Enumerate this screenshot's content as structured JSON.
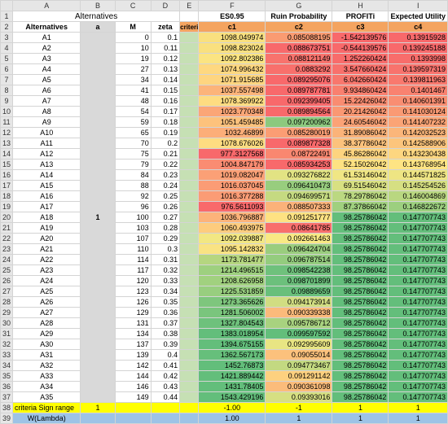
{
  "columns": [
    "A",
    "B",
    "C",
    "D",
    "E",
    "F",
    "G",
    "H",
    "I"
  ],
  "row1": {
    "alternatives_title": "Alternatives",
    "f": "ES0.95",
    "g": "Ruin Probability",
    "h": "PROFITi",
    "i": "Expected Utility"
  },
  "row2": {
    "a": "Alternatives",
    "b": "a",
    "c": "M",
    "d": "zeta",
    "e": "criteri",
    "f": "c1",
    "g": "c2",
    "h": "c3",
    "i": "c4"
  },
  "b_value": "1",
  "rows": [
    {
      "alt": "A1",
      "m": "0",
      "zeta": "0.1",
      "f": "1098.049974",
      "g": "0.085088195",
      "h": "-1.542139576",
      "i": "0.13915928",
      "fc": "#f9e07f",
      "gc": "#fa9b72",
      "hc": "#f8696b",
      "ic": "#f8696b"
    },
    {
      "alt": "A2",
      "m": "10",
      "zeta": "0.11",
      "f": "1098.823024",
      "g": "0.088673751",
      "h": "-0.544139576",
      "i": "0.139245188",
      "fc": "#f9e07f",
      "gc": "#f8696b",
      "hc": "#f8696b",
      "ic": "#f8696b"
    },
    {
      "alt": "A3",
      "m": "19",
      "zeta": "0.12",
      "f": "1092.802386",
      "g": "0.088121149",
      "h": "1.252260424",
      "i": "0.1393998",
      "fc": "#fbe482",
      "gc": "#f8736d",
      "hc": "#f86c6b",
      "ic": "#f86d6b"
    },
    {
      "alt": "A4",
      "m": "27",
      "zeta": "0.13",
      "f": "1074.996432",
      "g": "0.0883292",
      "h": "3.547660424",
      "i": "0.139597319",
      "fc": "#fed880",
      "gc": "#f8706c",
      "hc": "#f8716c",
      "ic": "#f8736d"
    },
    {
      "alt": "A5",
      "m": "34",
      "zeta": "0.14",
      "f": "1071.915685",
      "g": "0.089295076",
      "h": "6.042660424",
      "i": "0.139811963",
      "fc": "#fed580",
      "gc": "#f8696b",
      "hc": "#f8776d",
      "ic": "#f9796e"
    },
    {
      "alt": "A6",
      "m": "41",
      "zeta": "0.15",
      "f": "1037.557498",
      "g": "0.089787781",
      "h": "9.934860424",
      "i": "0.1401467",
      "fc": "#fcb47a",
      "gc": "#f8696b",
      "hc": "#f9806f",
      "ic": "#f98270"
    },
    {
      "alt": "A7",
      "m": "48",
      "zeta": "0.16",
      "f": "1078.369922",
      "g": "0.092399405",
      "h": "15.22426042",
      "i": "0.140601391",
      "fc": "#fedc81",
      "gc": "#f8696b",
      "hc": "#f98c71",
      "ic": "#f98e72"
    },
    {
      "alt": "A8",
      "m": "54",
      "zeta": "0.17",
      "f": "1023.770348",
      "g": "0.089894564",
      "h": "20.21426042",
      "i": "0.141030124",
      "fc": "#fba677",
      "gc": "#f8696b",
      "hc": "#fa9873",
      "ic": "#fa9a74"
    },
    {
      "alt": "A9",
      "m": "59",
      "zeta": "0.18",
      "f": "1051.459485",
      "g": "0.097200962",
      "h": "24.60546042",
      "i": "0.141407232",
      "fc": "#fdc27c",
      "gc": "#8cc97e",
      "hc": "#fba276",
      "ic": "#fba476"
    },
    {
      "alt": "A10",
      "m": "65",
      "zeta": "0.19",
      "f": "1032.46899",
      "g": "0.085280019",
      "h": "31.89086042",
      "i": "0.142032523",
      "fc": "#fcae79",
      "gc": "#fb9d74",
      "hc": "#fbb379",
      "ic": "#fbb67a"
    },
    {
      "alt": "A11",
      "m": "70",
      "zeta": "0.2",
      "f": "1078.676026",
      "g": "0.089877328",
      "h": "38.37786042",
      "i": "0.142588906",
      "fc": "#fedc81",
      "gc": "#f8696b",
      "hc": "#fcc27c",
      "ic": "#fcc57c"
    },
    {
      "alt": "A12",
      "m": "75",
      "zeta": "0.21",
      "f": "977.3127568",
      "g": "0.08722491",
      "h": "45.86286042",
      "i": "0.143230438",
      "fc": "#f8696b",
      "gc": "#f98770",
      "hc": "#fdd47f",
      "ic": "#fdd680"
    },
    {
      "alt": "A13",
      "m": "79",
      "zeta": "0.22",
      "f": "1004.847179",
      "g": "0.085934253",
      "h": "52.15026042",
      "i": "0.143768954",
      "fc": "#fa8c72",
      "gc": "#f8696b",
      "hc": "#fee282",
      "ic": "#fee483"
    },
    {
      "alt": "A14",
      "m": "84",
      "zeta": "0.23",
      "f": "1019.082047",
      "g": "0.093276822",
      "h": "61.53146042",
      "i": "0.144571825",
      "fc": "#fba076",
      "gc": "#e2e383",
      "hc": "#f0e684",
      "hc2": "",
      "ic": "#eee583"
    },
    {
      "alt": "A15",
      "m": "88",
      "zeta": "0.24",
      "f": "1016.037045",
      "g": "0.096410473",
      "h": "69.51546042",
      "i": "0.145254526",
      "fc": "#fb9c75",
      "gc": "#98cd7e",
      "hc": "#d8e082",
      "ic": "#d6df82"
    },
    {
      "alt": "A16",
      "m": "92",
      "zeta": "0.25",
      "f": "1016.377288",
      "g": "0.094699571",
      "h": "78.29786042",
      "i": "0.146004869",
      "fc": "#fb9c75",
      "gc": "#c5da81",
      "hc": "#bbd881",
      "ic": "#b9d780"
    },
    {
      "alt": "A17",
      "m": "96",
      "zeta": "0.26",
      "f": "976.5611093",
      "g": "0.088507333",
      "h": "87.37866042",
      "i": "0.146822672",
      "fc": "#f8696b",
      "gc": "#fbb27a",
      "hc": "#a0d07f",
      "ic": "#9ccf7f"
    },
    {
      "alt": "A18",
      "m": "100",
      "zeta": "0.27",
      "f": "1036.796887",
      "g": "0.091251777",
      "h": "98.25786042",
      "i": "0.147707743",
      "fc": "#fcb37a",
      "gc": "#fee282",
      "hc": "#63be7b",
      "ic": "#63be7b"
    },
    {
      "alt": "A19",
      "m": "103",
      "zeta": "0.28",
      "f": "1060.493975",
      "g": "0.08641785",
      "h": "98.25786042",
      "i": "0.147707743",
      "fc": "#fdcc7e",
      "gc": "#f86f6c",
      "hc": "#63be7b",
      "ic": "#63be7b"
    },
    {
      "alt": "A20",
      "m": "107",
      "zeta": "0.29",
      "f": "1092.039887",
      "g": "0.092661463",
      "h": "98.25786042",
      "i": "0.147707743",
      "fc": "#f2e783",
      "gc": "#f8e984",
      "hc": "#63be7b",
      "ic": "#63be7b"
    },
    {
      "alt": "A21",
      "m": "110",
      "zeta": "0.3",
      "f": "1095.142832",
      "g": "0.096424704",
      "h": "98.25786042",
      "i": "0.147707743",
      "fc": "#f9e383",
      "gc": "#9acd7e",
      "hc": "#63be7b",
      "ic": "#63be7b"
    },
    {
      "alt": "A22",
      "m": "114",
      "zeta": "0.31",
      "f": "1173.781477",
      "g": "0.096787514",
      "h": "98.25786042",
      "i": "0.147707743",
      "fc": "#b5d680",
      "gc": "#94cc7e",
      "hc": "#63be7b",
      "ic": "#63be7b"
    },
    {
      "alt": "A23",
      "m": "117",
      "zeta": "0.32",
      "f": "1214.496515",
      "g": "0.098542238",
      "h": "98.25786042",
      "i": "0.147707743",
      "fc": "#9ed07f",
      "gc": "#6fc17c",
      "hc": "#63be7b",
      "ic": "#63be7b"
    },
    {
      "alt": "A24",
      "m": "120",
      "zeta": "0.33",
      "f": "1208.626958",
      "g": "0.098701899",
      "h": "98.25786042",
      "i": "0.147707743",
      "fc": "#a1d17f",
      "gc": "#6cc07c",
      "hc": "#63be7b",
      "ic": "#63be7b"
    },
    {
      "alt": "A25",
      "m": "123",
      "zeta": "0.34",
      "f": "1225.531859",
      "g": "0.09889659",
      "h": "98.25786042",
      "i": "0.147707743",
      "fc": "#98ce7f",
      "gc": "#68bf7b",
      "hc": "#63be7b",
      "ic": "#63be7b"
    },
    {
      "alt": "A26",
      "m": "126",
      "zeta": "0.35",
      "f": "1273.365626",
      "g": "0.094173914",
      "h": "98.25786042",
      "i": "0.147707743",
      "fc": "#7ec67d",
      "gc": "#d1dd82",
      "hc": "#63be7b",
      "ic": "#63be7b"
    },
    {
      "alt": "A27",
      "m": "129",
      "zeta": "0.36",
      "f": "1281.506002",
      "g": "0.090339338",
      "h": "98.25786042",
      "i": "0.147707743",
      "fc": "#7ac57d",
      "gc": "#fbba7b",
      "hc": "#63be7b",
      "ic": "#63be7b"
    },
    {
      "alt": "A28",
      "m": "131",
      "zeta": "0.37",
      "f": "1327.804543",
      "g": "0.095786712",
      "h": "98.25786042",
      "i": "0.147707743",
      "fc": "#6ec17c",
      "gc": "#a8d27f",
      "hc": "#63be7b",
      "ic": "#63be7b"
    },
    {
      "alt": "A29",
      "m": "134",
      "zeta": "0.38",
      "f": "1383.018954",
      "g": "0.099597592",
      "h": "98.25786042",
      "i": "0.147707743",
      "fc": "#63be7b",
      "gc": "#63be7b",
      "hc": "#63be7b",
      "ic": "#63be7b"
    },
    {
      "alt": "A30",
      "m": "137",
      "zeta": "0.39",
      "f": "1394.675155",
      "g": "0.092995609",
      "h": "98.25786042",
      "i": "0.147707743",
      "fc": "#63be7b",
      "gc": "#e8e583",
      "hc": "#63be7b",
      "ic": "#63be7b"
    },
    {
      "alt": "A31",
      "m": "139",
      "zeta": "0.4",
      "f": "1362.567173",
      "g": "0.09055014",
      "h": "98.25786042",
      "i": "0.147707743",
      "fc": "#66bf7b",
      "gc": "#fcc17c",
      "hc": "#63be7b",
      "ic": "#63be7b"
    },
    {
      "alt": "A32",
      "m": "142",
      "zeta": "0.41",
      "f": "1452.76873",
      "g": "0.094773467",
      "h": "98.25786042",
      "i": "0.147707743",
      "fc": "#63be7b",
      "gc": "#c3d981",
      "hc": "#63be7b",
      "ic": "#63be7b"
    },
    {
      "alt": "A33",
      "m": "144",
      "zeta": "0.42",
      "f": "1421.889442",
      "g": "0.091291142",
      "h": "98.25786042",
      "i": "0.147707743",
      "fc": "#63be7b",
      "gc": "#fdd17f",
      "hc": "#63be7b",
      "ic": "#63be7b"
    },
    {
      "alt": "A34",
      "m": "146",
      "zeta": "0.43",
      "f": "1431.78405",
      "g": "0.090361098",
      "h": "98.25786042",
      "i": "0.147707743",
      "fc": "#63be7b",
      "gc": "#fbbc7b",
      "hc": "#63be7b",
      "ic": "#63be7b"
    },
    {
      "alt": "A35",
      "m": "149",
      "zeta": "0.44",
      "f": "1543.429196",
      "g": "0.09393016",
      "h": "98.25786042",
      "i": "0.147707743",
      "fc": "#63be7b",
      "gc": "#d6df82",
      "hc": "#63be7b",
      "ic": "#63be7b"
    }
  ],
  "row38": {
    "a": "criteria Sign range",
    "b": "1",
    "f": "-1.00",
    "g": "-1",
    "h": "1",
    "i": "1"
  },
  "row39": {
    "a": "W(Lambda)",
    "f": "1.00",
    "g": "1",
    "h": "1",
    "i": "1"
  }
}
